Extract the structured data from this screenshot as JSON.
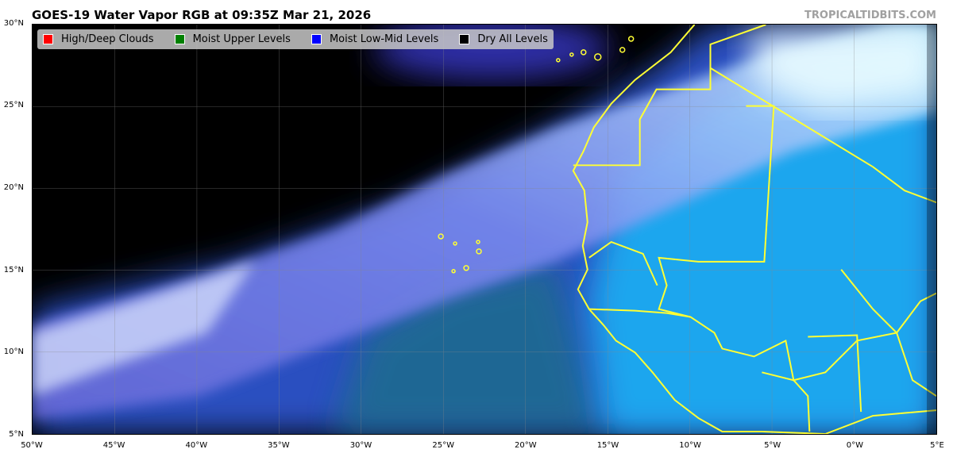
{
  "title": "GOES-19 Water Vapor RGB at 09:35Z Mar 21, 2026",
  "credit": "TROPICALTIDBITS.COM",
  "legend": [
    {
      "label": "High/Deep Clouds",
      "color": "#ff0000"
    },
    {
      "label": "Moist Upper Levels",
      "color": "#008000"
    },
    {
      "label": "Moist Low-Mid Levels",
      "color": "#0000ff"
    },
    {
      "label": "Dry All Levels",
      "color": "#000000"
    }
  ],
  "y_ticks": [
    "30°N",
    "25°N",
    "20°N",
    "15°N",
    "10°N",
    "5°N"
  ],
  "x_ticks": [
    "50°W",
    "45°W",
    "40°W",
    "35°W",
    "30°W",
    "25°W",
    "20°W",
    "15°W",
    "10°W",
    "5°W",
    "0°W",
    "5°E"
  ],
  "map": {
    "extent_lon": [
      -50,
      5
    ],
    "extent_lat": [
      5,
      30
    ],
    "border_color": "#ffff33"
  }
}
